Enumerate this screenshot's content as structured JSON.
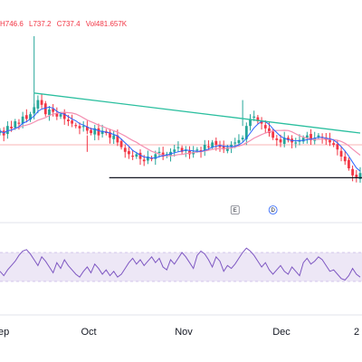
{
  "legend": {
    "high": "H746.6",
    "low": "L737.2",
    "close": "C737.4",
    "volume": "Vol481.657K"
  },
  "colors": {
    "up": "#26a69a",
    "down": "#f23645",
    "ma_fast": "#2962ff",
    "ma_slow": "#f48fb1",
    "trendline": "#2bbf9f",
    "support": "#131722",
    "rsi": "#7e57c2",
    "rsi_band": "#ede7f6",
    "hline": "#f8b4b4"
  },
  "markers": {
    "earnings": "E",
    "dividend": "D"
  },
  "chart_data": [
    {
      "type": "candlestick",
      "title": "",
      "x_ticks": [
        "ep",
        "Oct",
        "Nov",
        "Dec",
        "2"
      ],
      "y_axis_visible": false,
      "ylim": [
        0,
        100
      ],
      "series_style": "relative price (no axis labels shown)",
      "closes": [
        62,
        58,
        66,
        64,
        70,
        68,
        74,
        72,
        76,
        82,
        88,
        84,
        76,
        80,
        78,
        74,
        76,
        72,
        70,
        68,
        66,
        64,
        66,
        62,
        60,
        64,
        58,
        62,
        60,
        56,
        58,
        52,
        48,
        44,
        42,
        40,
        42,
        38,
        36,
        40,
        38,
        42,
        44,
        40,
        42,
        44,
        46,
        48,
        44,
        46,
        42,
        44,
        46,
        44,
        50,
        48,
        52,
        50,
        48,
        46,
        48,
        50,
        52,
        54,
        56,
        66,
        72,
        74,
        70,
        68,
        64,
        60,
        56,
        54,
        52,
        56,
        54,
        52,
        52,
        54,
        56,
        58,
        54,
        56,
        58,
        56,
        54,
        52,
        50,
        46,
        40,
        36,
        30,
        24,
        22,
        26
      ],
      "moving_averages": [
        {
          "period": "fast",
          "color_key": "ma_fast"
        },
        {
          "period": "slow",
          "color_key": "ma_slow"
        }
      ],
      "drawings": {
        "descending_trendline": {
          "from_index": 9,
          "from_value": 94,
          "to_index": 95,
          "to_value": 60
        },
        "support_line": {
          "from_index": 30,
          "to_index": 95,
          "value": 22
        },
        "horizontal_level": 50
      },
      "event_markers": [
        {
          "label": "E",
          "index": 62
        },
        {
          "label": "D",
          "index": 72
        }
      ]
    },
    {
      "type": "line",
      "title": "",
      "series": [
        {
          "values": [
            44,
            38,
            46,
            52,
            58,
            66,
            72,
            74,
            68,
            60,
            52,
            64,
            58,
            50,
            42,
            56,
            48,
            60,
            52,
            46,
            40,
            36,
            44,
            50,
            42,
            54,
            48,
            40,
            46,
            38,
            44,
            36,
            40,
            48,
            56,
            62,
            54,
            60,
            52,
            58,
            64,
            56,
            62,
            50,
            46,
            60,
            54,
            62,
            70,
            64,
            56,
            48,
            66,
            72,
            68,
            60,
            50,
            64,
            58,
            44,
            52,
            48,
            54,
            62,
            70,
            76,
            72,
            66,
            58,
            50,
            56,
            46,
            40,
            46,
            52,
            44,
            40,
            50,
            44,
            38,
            56,
            62,
            54,
            58,
            64,
            60,
            52,
            44,
            46,
            40,
            34,
            32,
            38,
            48,
            40,
            36
          ]
        }
      ],
      "ylim": [
        0,
        100
      ],
      "bands": [
        30,
        70
      ]
    }
  ]
}
